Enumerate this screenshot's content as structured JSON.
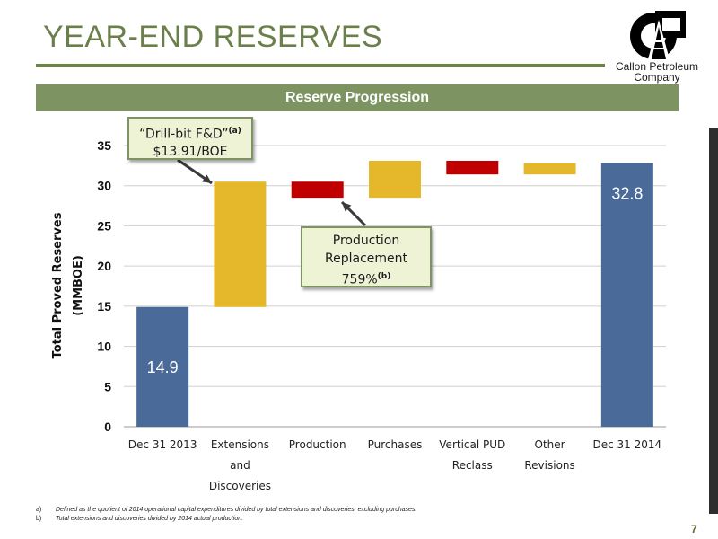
{
  "page": {
    "title": "YEAR-END RESERVES",
    "page_number": "7",
    "accent_color": "#6e8548"
  },
  "logo": {
    "line1": "Callon Petroleum",
    "line2": "Company"
  },
  "banner": {
    "text": "Reserve Progression"
  },
  "callouts": {
    "fd": {
      "line1": "“Drill-bit F&D”",
      "sup": "(a)",
      "line2": "$13.91/BOE"
    },
    "replacement": {
      "line1": "Production",
      "line2": "Replacement",
      "line3": "759%",
      "sup": "(b)"
    }
  },
  "footnotes": [
    {
      "mark": "a)",
      "text": "Defined as the quotient of 2014 operational capital expenditures divided by total extensions and discoveries, excluding purchases."
    },
    {
      "mark": "b)",
      "text": "Total extensions and discoveries divided by 2014 actual production."
    }
  ],
  "chart_data": {
    "type": "bar",
    "subtype": "waterfall",
    "title": "Reserve Progression",
    "ylabel_lines": [
      "Total Proved Reserves",
      "(MMBOE)"
    ],
    "ylim": [
      0,
      35
    ],
    "yticks": [
      0,
      5,
      10,
      15,
      20,
      25,
      30,
      35
    ],
    "grid": true,
    "legend": "none",
    "categories": [
      [
        "Dec 31 2013"
      ],
      [
        "Extensions",
        "and",
        "Discoveries"
      ],
      [
        "Production"
      ],
      [
        "Purchases"
      ],
      [
        "Vertical PUD",
        "Reclass"
      ],
      [
        "Other",
        "Revisions"
      ],
      [
        "Dec 31 2014"
      ]
    ],
    "bars": [
      {
        "kind": "total",
        "start": 0,
        "end": 14.9,
        "label": "14.9",
        "color": "#4a6b9a"
      },
      {
        "kind": "increase",
        "start": 14.9,
        "end": 30.5,
        "color": "#e4b82a"
      },
      {
        "kind": "decrease",
        "start": 30.5,
        "end": 28.5,
        "color": "#c00000"
      },
      {
        "kind": "increase",
        "start": 28.5,
        "end": 33.1,
        "color": "#e4b82a"
      },
      {
        "kind": "decrease",
        "start": 33.1,
        "end": 31.4,
        "color": "#c00000"
      },
      {
        "kind": "increase",
        "start": 31.4,
        "end": 32.8,
        "color": "#e4b82a"
      },
      {
        "kind": "total",
        "start": 0,
        "end": 32.8,
        "label": "32.8",
        "color": "#4a6b9a"
      }
    ]
  }
}
